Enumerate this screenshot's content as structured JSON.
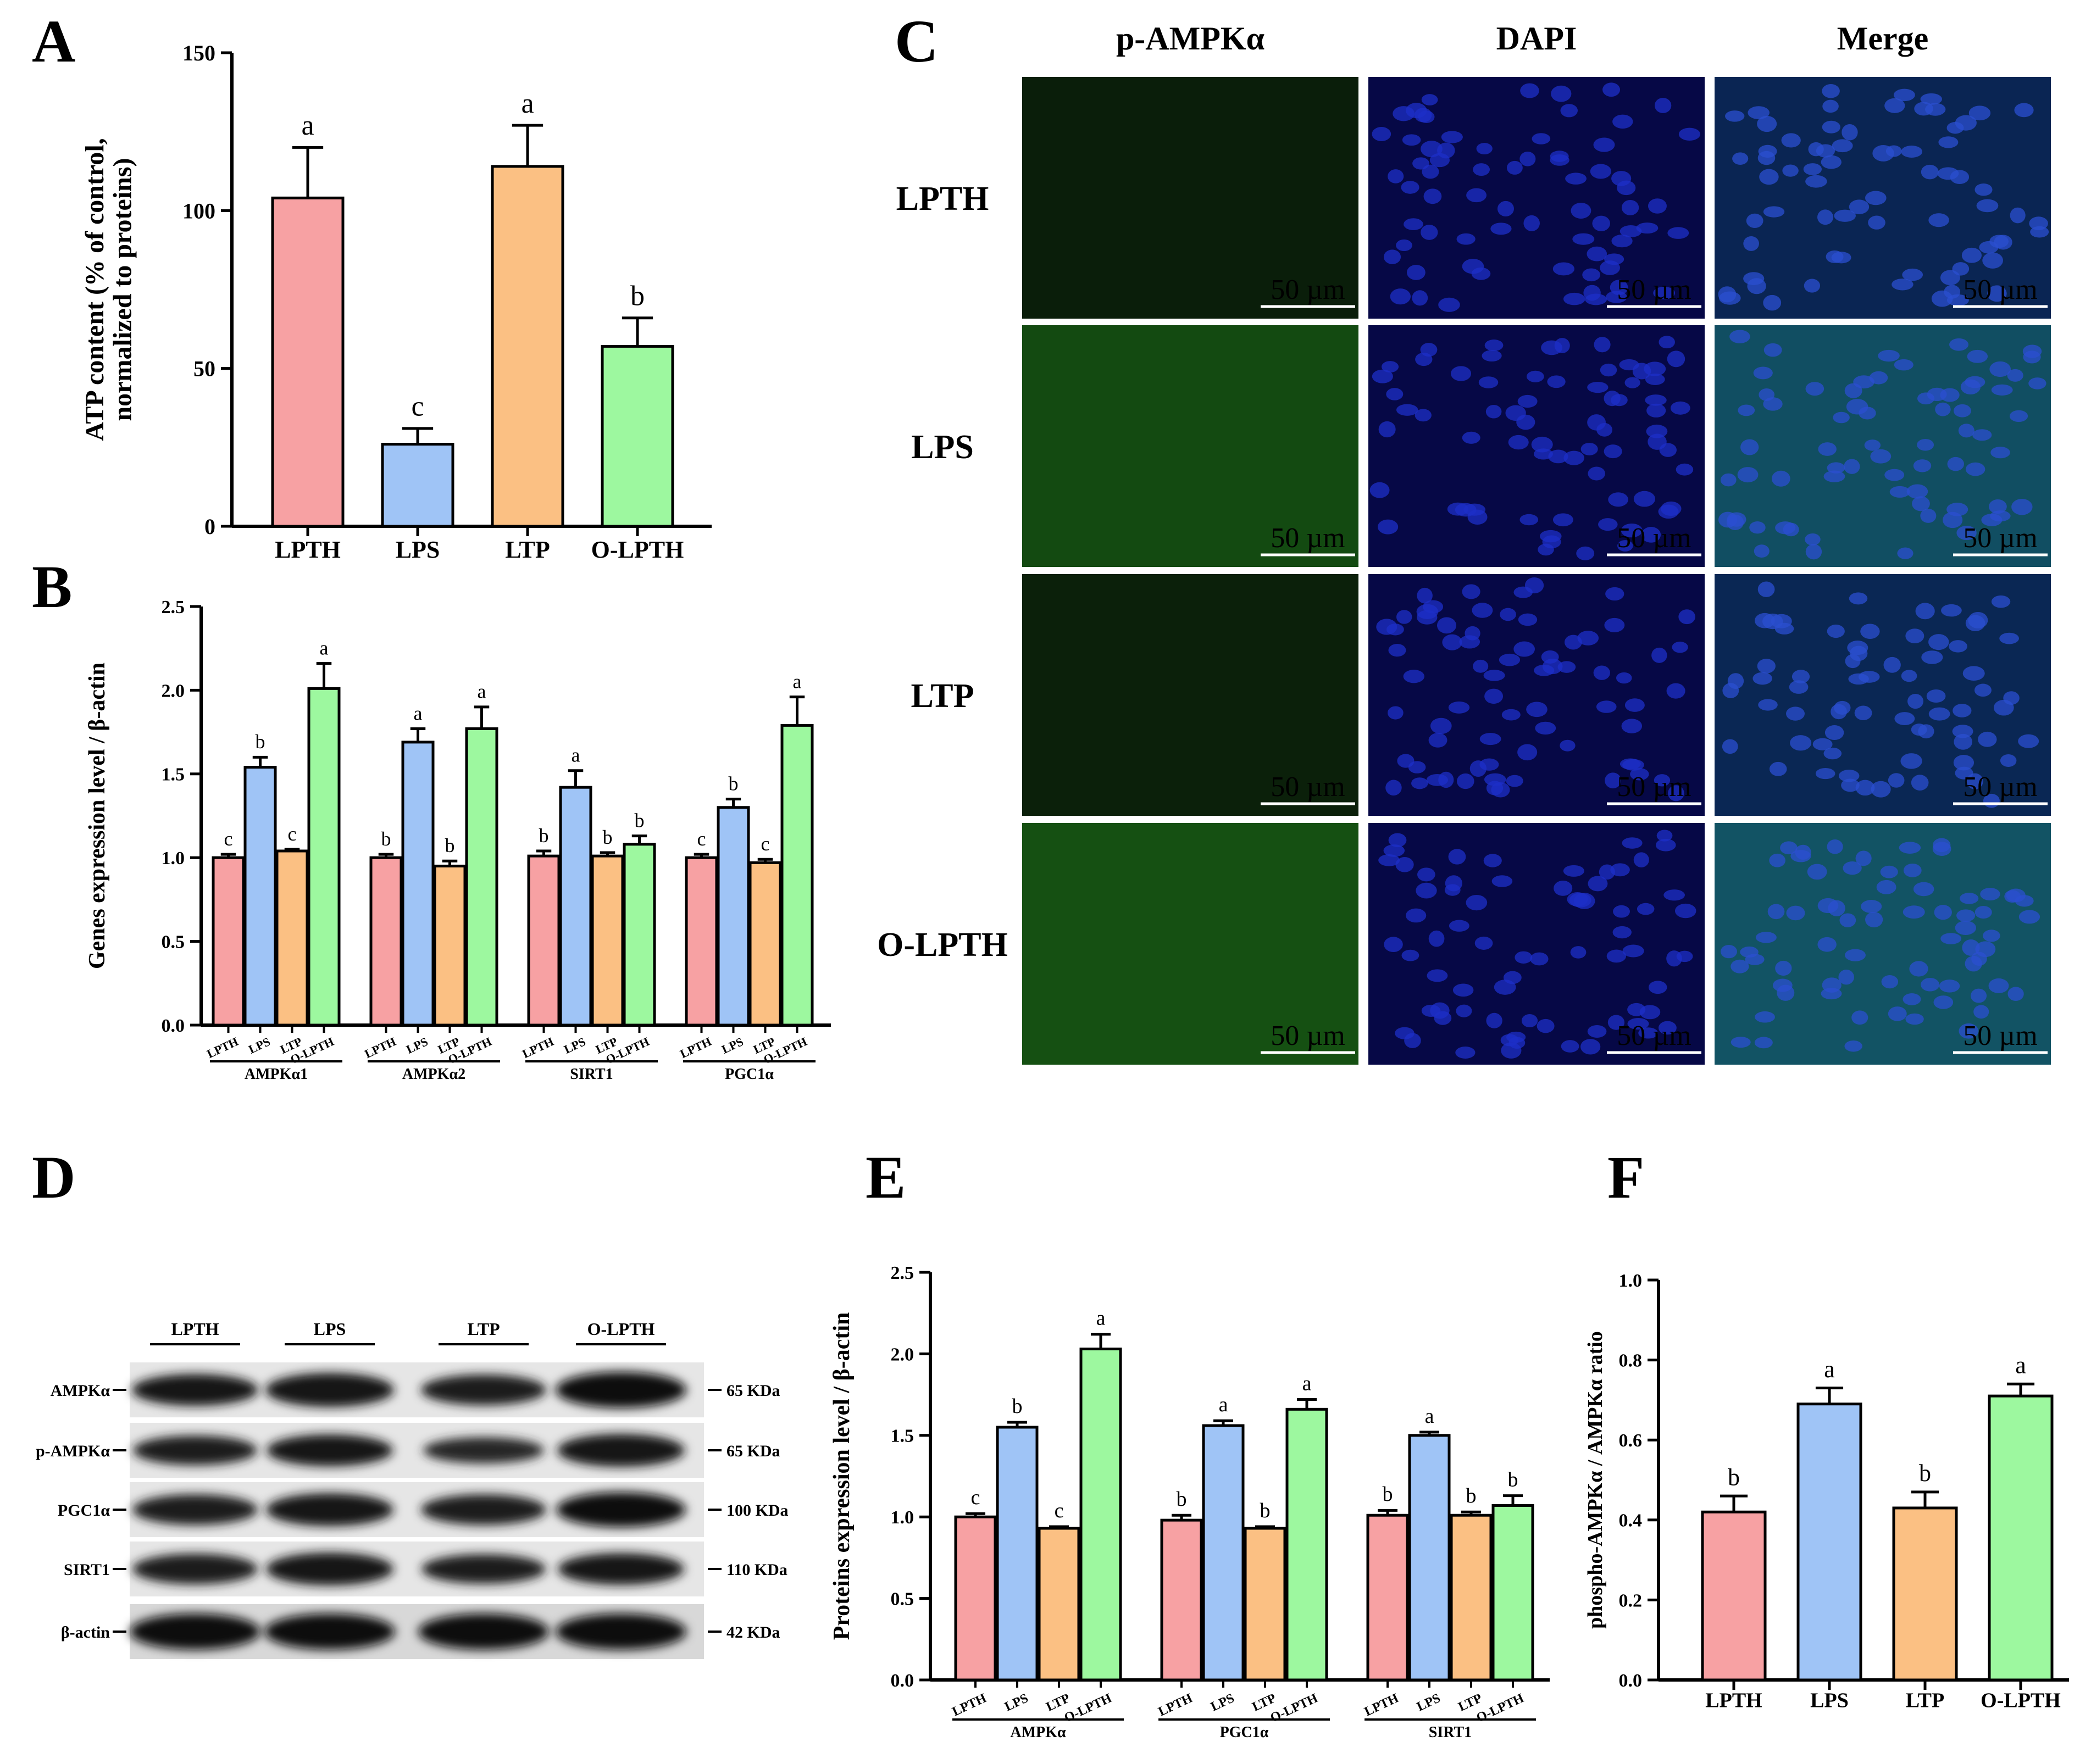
{
  "colors": {
    "LPTH": "#f7a1a3",
    "LPS": "#9fc4f6",
    "LTP": "#fbc083",
    "O-LPTH": "#9df89f"
  },
  "groups": [
    "LPTH",
    "LPS",
    "LTP",
    "O-LPTH"
  ],
  "panels": {
    "A": {
      "letter": "A"
    },
    "B": {
      "letter": "B"
    },
    "C": {
      "letter": "C",
      "columns": [
        "p-AMPKα",
        "DAPI",
        "Merge"
      ],
      "rows": [
        "LPTH",
        "LPS",
        "LTP",
        "O-LPTH"
      ],
      "scale_bar": "50 µm",
      "channels": [
        "green",
        "blue",
        "merge"
      ],
      "green_level": [
        0.08,
        0.45,
        0.1,
        0.5
      ]
    },
    "D": {
      "letter": "D",
      "lane_labels": [
        "LPTH",
        "LPS",
        "LTP",
        "O-LPTH"
      ],
      "blots": [
        {
          "protein": "AMPKα",
          "size": "65 KDa",
          "intensity": [
            0.75,
            0.85,
            0.7,
            0.95
          ]
        },
        {
          "protein": "p-AMPKα",
          "size": "65 KDa",
          "intensity": [
            0.65,
            0.75,
            0.5,
            0.8
          ]
        },
        {
          "protein": "PGC1α",
          "size": "100 KDa",
          "intensity": [
            0.7,
            0.8,
            0.7,
            0.9
          ]
        },
        {
          "protein": "SIRT1",
          "size": "110 KDa",
          "intensity": [
            0.7,
            0.8,
            0.65,
            0.75
          ]
        },
        {
          "protein": "β-actin",
          "size": "42 KDa",
          "intensity": [
            0.95,
            0.95,
            0.95,
            0.95
          ]
        }
      ]
    },
    "E": {
      "letter": "E"
    },
    "F": {
      "letter": "F"
    }
  },
  "chart_data": [
    {
      "panel": "A",
      "type": "bar",
      "categories": [
        "LPTH",
        "LPS",
        "LTP",
        "O-LPTH"
      ],
      "values": [
        104,
        26,
        114,
        57
      ],
      "errors": [
        16,
        5,
        13,
        9
      ],
      "letters": [
        "a",
        "c",
        "a",
        "b"
      ],
      "ylabel": "ATP content (% of control, normalized to proteins)",
      "ylabel_lines": [
        "ATP content (% of control,",
        "normalized to proteins)"
      ],
      "ylim": [
        0,
        150
      ],
      "yticks": [
        0,
        50,
        100,
        150
      ]
    },
    {
      "panel": "B",
      "type": "bar",
      "groups": [
        "AMPKα1",
        "AMPKα2",
        "SIRT1",
        "PGC1α"
      ],
      "categories": [
        "LPTH",
        "LPS",
        "LTP",
        "O-LPTH"
      ],
      "values": [
        [
          1.0,
          1.54,
          1.04,
          2.01
        ],
        [
          1.0,
          1.69,
          0.95,
          1.77
        ],
        [
          1.01,
          1.42,
          1.01,
          1.08
        ],
        [
          1.0,
          1.3,
          0.97,
          1.79
        ]
      ],
      "errors": [
        [
          0.02,
          0.06,
          0.01,
          0.15
        ],
        [
          0.02,
          0.08,
          0.03,
          0.13
        ],
        [
          0.03,
          0.1,
          0.02,
          0.05
        ],
        [
          0.02,
          0.05,
          0.02,
          0.17
        ]
      ],
      "letters": [
        [
          "c",
          "b",
          "c",
          "a"
        ],
        [
          "b",
          "a",
          "b",
          "a"
        ],
        [
          "b",
          "a",
          "b",
          "b"
        ],
        [
          "c",
          "b",
          "c",
          "a"
        ]
      ],
      "ylabel": "Genes expression level / β-actin",
      "ylim": [
        0,
        2.5
      ],
      "yticks": [
        0.0,
        0.5,
        1.0,
        1.5,
        2.0,
        2.5
      ],
      "ytick_labels": [
        "0.0",
        "0.5",
        "1.0",
        "1.5",
        "2.0",
        "2.5"
      ]
    },
    {
      "panel": "E",
      "type": "bar",
      "groups": [
        "AMPKα",
        "PGC1α",
        "SIRT1"
      ],
      "categories": [
        "LPTH",
        "LPS",
        "LTP",
        "O-LPTH"
      ],
      "values": [
        [
          1.0,
          1.55,
          0.93,
          2.03
        ],
        [
          0.98,
          1.56,
          0.93,
          1.66
        ],
        [
          1.01,
          1.5,
          1.01,
          1.07
        ]
      ],
      "errors": [
        [
          0.02,
          0.03,
          0.01,
          0.09
        ],
        [
          0.03,
          0.03,
          0.01,
          0.06
        ],
        [
          0.03,
          0.02,
          0.02,
          0.06
        ]
      ],
      "letters": [
        [
          "c",
          "b",
          "c",
          "a"
        ],
        [
          "b",
          "a",
          "b",
          "a"
        ],
        [
          "b",
          "a",
          "b",
          "b"
        ]
      ],
      "ylabel": "Proteins expression level / β-actin",
      "ylim": [
        0,
        2.5
      ],
      "yticks": [
        0.0,
        0.5,
        1.0,
        1.5,
        2.0,
        2.5
      ],
      "ytick_labels": [
        "0.0",
        "0.5",
        "1.0",
        "1.5",
        "2.0",
        "2.5"
      ]
    },
    {
      "panel": "F",
      "type": "bar",
      "categories": [
        "LPTH",
        "LPS",
        "LTP",
        "O-LPTH"
      ],
      "values": [
        0.42,
        0.69,
        0.43,
        0.71
      ],
      "errors": [
        0.04,
        0.04,
        0.04,
        0.03
      ],
      "letters": [
        "b",
        "a",
        "b",
        "a"
      ],
      "ylabel": "phospho-AMPKα / AMPKα ratio",
      "ylim": [
        0,
        1.0
      ],
      "yticks": [
        0.0,
        0.2,
        0.4,
        0.6,
        0.8,
        1.0
      ],
      "ytick_labels": [
        "0.0",
        "0.2",
        "0.4",
        "0.6",
        "0.8",
        "1.0"
      ]
    }
  ]
}
